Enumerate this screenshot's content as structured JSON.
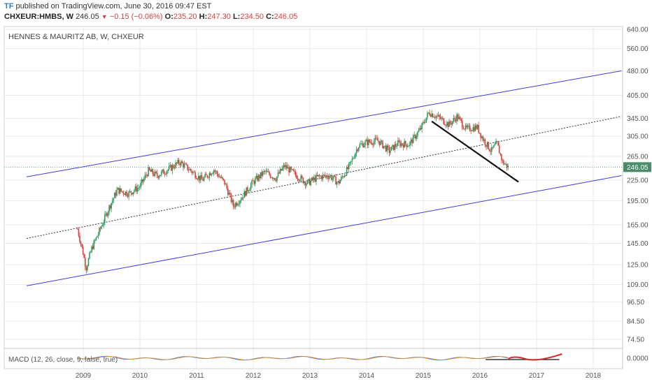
{
  "header": {
    "logo": "TF",
    "published": "published on TradingView.com, June 30, 2016 09:47 EST",
    "symbol": "CHXEUR:HMBS, W",
    "last": "246.05",
    "change": "−0.15 (−0.06%)",
    "o_label": "O:",
    "o_value": "235.20",
    "h_label": "H:",
    "h_value": "247.30",
    "l_label": "L:",
    "l_value": "234.50",
    "c_label": "C:",
    "c_value": "246.05"
  },
  "chart_data": {
    "type": "candlestick",
    "title": "HENNES & MAURITZ AB, W, CHXEUR",
    "price_axis_ticks": [
      "640.00",
      "560.00",
      "480.00",
      "405.00",
      "345.00",
      "305.00",
      "265.00",
      "225.00",
      "195.00",
      "165.00",
      "145.00",
      "125.00",
      "109.00",
      "96.50",
      "84.50",
      "74.50"
    ],
    "price_axis_scale": "log",
    "time_axis_ticks": [
      "2009",
      "2010",
      "2011",
      "2012",
      "2013",
      "2014",
      "2015",
      "2016",
      "2017",
      "2018"
    ],
    "last_price_label": "246.05",
    "last_price": 246.05,
    "price_path": [
      [
        2008.9,
        160
      ],
      [
        2009.0,
        135
      ],
      [
        2009.05,
        122
      ],
      [
        2009.15,
        140
      ],
      [
        2009.3,
        160
      ],
      [
        2009.45,
        185
      ],
      [
        2009.6,
        210
      ],
      [
        2009.8,
        205
      ],
      [
        2010.0,
        215
      ],
      [
        2010.15,
        240
      ],
      [
        2010.3,
        232
      ],
      [
        2010.55,
        245
      ],
      [
        2010.7,
        255
      ],
      [
        2010.9,
        240
      ],
      [
        2011.1,
        225
      ],
      [
        2011.3,
        242
      ],
      [
        2011.5,
        220
      ],
      [
        2011.65,
        188
      ],
      [
        2011.8,
        200
      ],
      [
        2012.0,
        222
      ],
      [
        2012.2,
        238
      ],
      [
        2012.4,
        228
      ],
      [
        2012.55,
        248
      ],
      [
        2012.75,
        233
      ],
      [
        2012.95,
        220
      ],
      [
        2013.15,
        230
      ],
      [
        2013.35,
        232
      ],
      [
        2013.5,
        220
      ],
      [
        2013.7,
        248
      ],
      [
        2013.85,
        285
      ],
      [
        2014.0,
        292
      ],
      [
        2014.2,
        296
      ],
      [
        2014.4,
        275
      ],
      [
        2014.55,
        290
      ],
      [
        2014.75,
        288
      ],
      [
        2014.95,
        320
      ],
      [
        2015.1,
        360
      ],
      [
        2015.3,
        345
      ],
      [
        2015.45,
        330
      ],
      [
        2015.6,
        350
      ],
      [
        2015.75,
        320
      ],
      [
        2015.95,
        325
      ],
      [
        2016.05,
        300
      ],
      [
        2016.2,
        275
      ],
      [
        2016.3,
        290
      ],
      [
        2016.4,
        255
      ],
      [
        2016.5,
        246
      ]
    ],
    "channel_lines": [
      {
        "name": "upper",
        "x": [
          2008.0,
          2018.5
        ],
        "y": [
          230,
          480
        ],
        "color": "#3c3ce0"
      },
      {
        "name": "lower",
        "x": [
          2008.0,
          2018.5
        ],
        "y": [
          108,
          232
        ],
        "color": "#3c3ce0"
      },
      {
        "name": "mid",
        "x": [
          2008.0,
          2018.5
        ],
        "y": [
          150,
          350
        ],
        "color": "#333333",
        "style": "dotted"
      }
    ],
    "trend_line": {
      "x": [
        2015.15,
        2016.68
      ],
      "y": [
        338,
        222
      ],
      "color": "#111111"
    },
    "indicator": {
      "label": "MACD (12, 26, close, 9, false, true)",
      "axis_tick": "0.0000"
    },
    "colors": {
      "up": "#2e9b5e",
      "down": "#d6403a",
      "last_price_badge": "#4a8c6a",
      "grid": "#e8e8e8"
    },
    "grid": true
  }
}
